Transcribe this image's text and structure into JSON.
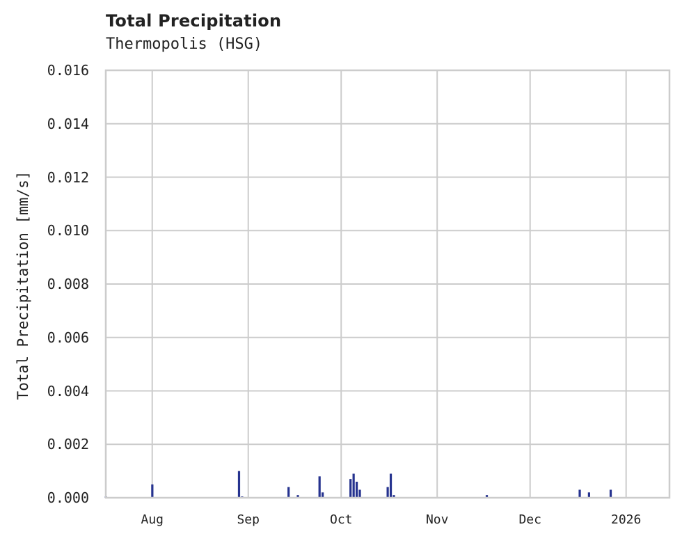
{
  "chart_data": {
    "type": "bar",
    "title": "Total Precipitation",
    "subtitle": "Thermopolis (HSG)",
    "xlabel": "",
    "ylabel": "Total Precipitation [mm/s]",
    "ylim": [
      0,
      0.016
    ],
    "grid": true,
    "legend": null,
    "y_ticks": [
      "0.000",
      "0.002",
      "0.004",
      "0.006",
      "0.008",
      "0.010",
      "0.012",
      "0.014",
      "0.016"
    ],
    "x_ticks": [
      "Aug",
      "Sep",
      "Oct",
      "Nov",
      "Dec",
      "2026"
    ],
    "x_range": [
      "2025-07-17",
      "2026-01-15"
    ],
    "bar_color": "#26338f",
    "series": [
      {
        "name": "Total Precipitation",
        "points": [
          {
            "date": "2025-07-17",
            "value": 5e-05
          },
          {
            "date": "2025-08-01",
            "value": 0.0005
          },
          {
            "date": "2025-08-29",
            "value": 0.001
          },
          {
            "date": "2025-08-30",
            "value": 5e-05
          },
          {
            "date": "2025-09-14",
            "value": 0.0004
          },
          {
            "date": "2025-09-17",
            "value": 0.0001
          },
          {
            "date": "2025-09-24",
            "value": 0.0008
          },
          {
            "date": "2025-09-25",
            "value": 0.0002
          },
          {
            "date": "2025-10-04",
            "value": 0.0007
          },
          {
            "date": "2025-10-05",
            "value": 0.0009
          },
          {
            "date": "2025-10-06",
            "value": 0.0006
          },
          {
            "date": "2025-10-07",
            "value": 0.0003
          },
          {
            "date": "2025-10-16",
            "value": 0.0004
          },
          {
            "date": "2025-10-17",
            "value": 0.0009
          },
          {
            "date": "2025-10-18",
            "value": 0.0001
          },
          {
            "date": "2025-11-17",
            "value": 0.0001
          },
          {
            "date": "2025-12-17",
            "value": 0.0003
          },
          {
            "date": "2025-12-20",
            "value": 0.0002
          },
          {
            "date": "2025-12-27",
            "value": 0.0003
          }
        ]
      }
    ]
  },
  "colors": {
    "grid": "#cccccc",
    "axis": "#cccccc",
    "text": "#222222",
    "bar": "#26338f"
  }
}
